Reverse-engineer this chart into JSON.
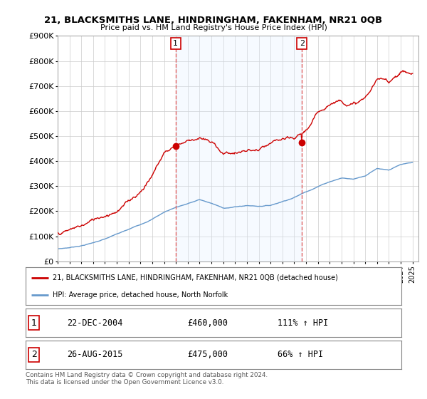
{
  "title": "21, BLACKSMITHS LANE, HINDRINGHAM, FAKENHAM, NR21 0QB",
  "subtitle": "Price paid vs. HM Land Registry's House Price Index (HPI)",
  "sale1_date": 2004.97,
  "sale1_price": 460000,
  "sale1_label": "1",
  "sale1_text": "22-DEC-2004",
  "sale1_amount": "£460,000",
  "sale1_hpi": "111% ↑ HPI",
  "sale2_date": 2015.65,
  "sale2_price": 475000,
  "sale2_label": "2",
  "sale2_text": "26-AUG-2015",
  "sale2_amount": "£475,000",
  "sale2_hpi": "66% ↑ HPI",
  "legend_red": "21, BLACKSMITHS LANE, HINDRINGHAM, FAKENHAM, NR21 0QB (detached house)",
  "legend_blue": "HPI: Average price, detached house, North Norfolk",
  "footer": "Contains HM Land Registry data © Crown copyright and database right 2024.\nThis data is licensed under the Open Government Licence v3.0.",
  "property_color": "#cc0000",
  "hpi_color": "#6699cc",
  "vline_color": "#e06060",
  "shade_color": "#ddeeff",
  "ylim": [
    0,
    900000
  ],
  "xlim_start": 1995.0,
  "xlim_end": 2025.5,
  "yticks": [
    0,
    100000,
    200000,
    300000,
    400000,
    500000,
    600000,
    700000,
    800000,
    900000
  ],
  "ytick_labels": [
    "£0",
    "£100K",
    "£200K",
    "£300K",
    "£400K",
    "£500K",
    "£600K",
    "£700K",
    "£800K",
    "£900K"
  ],
  "xticks": [
    1995,
    1996,
    1997,
    1998,
    1999,
    2000,
    2001,
    2002,
    2003,
    2004,
    2005,
    2006,
    2007,
    2008,
    2009,
    2010,
    2011,
    2012,
    2013,
    2014,
    2015,
    2016,
    2017,
    2018,
    2019,
    2020,
    2021,
    2022,
    2023,
    2024,
    2025
  ],
  "hpi_anchors_x": [
    1995,
    1996,
    1997,
    1998,
    1999,
    2000,
    2001,
    2002,
    2003,
    2004,
    2005,
    2006,
    2007,
    2008,
    2009,
    2010,
    2011,
    2012,
    2013,
    2014,
    2015,
    2016,
    2017,
    2018,
    2019,
    2020,
    2021,
    2022,
    2023,
    2024,
    2025
  ],
  "hpi_anchors_y": [
    50000,
    55000,
    63000,
    75000,
    90000,
    108000,
    125000,
    145000,
    168000,
    195000,
    215000,
    230000,
    245000,
    230000,
    210000,
    215000,
    220000,
    218000,
    222000,
    238000,
    255000,
    278000,
    300000,
    320000,
    335000,
    330000,
    345000,
    375000,
    370000,
    390000,
    395000
  ],
  "prop_anchors_x": [
    1995,
    1996,
    1997,
    1998,
    1999,
    2000,
    2001,
    2002,
    2003,
    2004,
    2005,
    2006,
    2007,
    2008,
    2009,
    2010,
    2011,
    2012,
    2013,
    2014,
    2015,
    2016,
    2017,
    2018,
    2019,
    2020,
    2021,
    2022,
    2023,
    2024,
    2025
  ],
  "prop_anchors_y": [
    115000,
    125000,
    140000,
    160000,
    185000,
    215000,
    250000,
    295000,
    365000,
    455000,
    490000,
    510000,
    530000,
    500000,
    460000,
    465000,
    470000,
    468000,
    480000,
    490000,
    475000,
    510000,
    570000,
    620000,
    640000,
    630000,
    650000,
    720000,
    710000,
    760000,
    750000
  ]
}
